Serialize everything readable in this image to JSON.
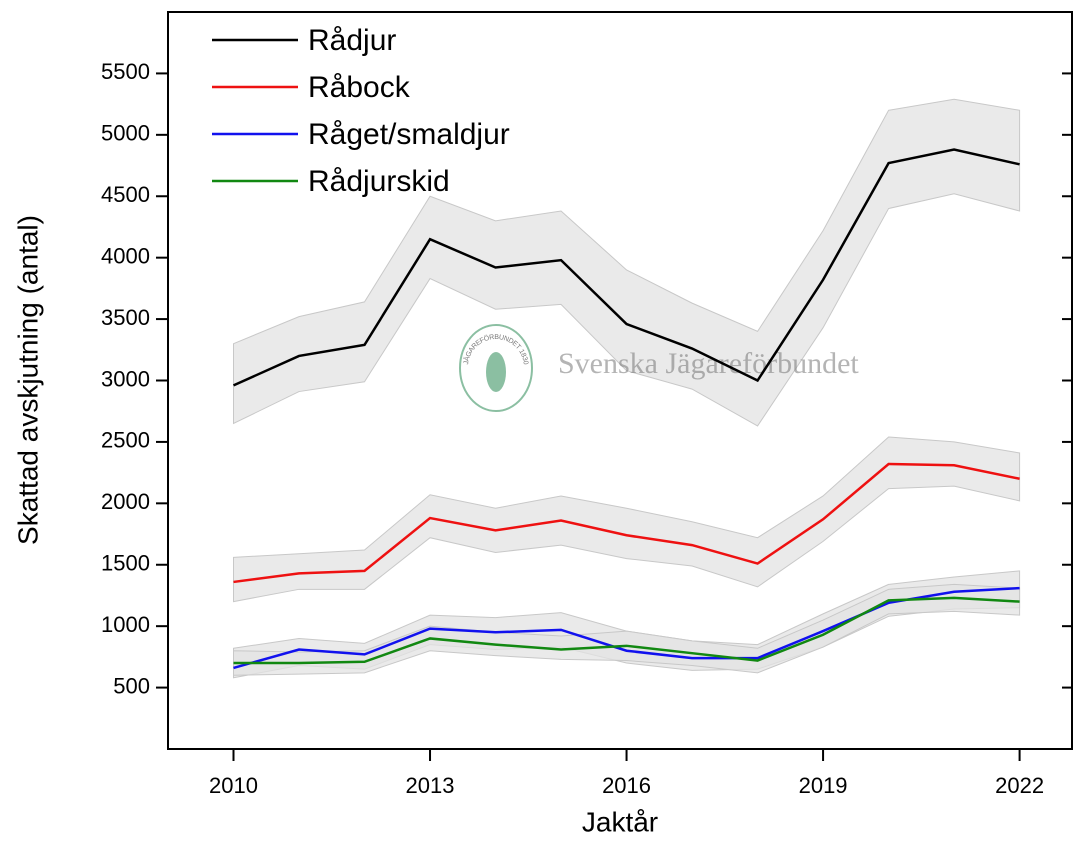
{
  "chart_data": {
    "type": "line",
    "x_label": "Jaktår",
    "y_label": "Skattad avskjutning (antal)",
    "watermark": "Svenska Jägareförbundet",
    "logo_text": "JÄGAREFÖRBUNDET 1830",
    "x": [
      2010,
      2011,
      2012,
      2013,
      2014,
      2015,
      2016,
      2017,
      2018,
      2019,
      2020,
      2021,
      2022
    ],
    "xlim": [
      2009,
      2022.8
    ],
    "xticks": [
      2010,
      2013,
      2016,
      2019,
      2022
    ],
    "ylim": [
      0,
      6000
    ],
    "yticks": [
      500,
      1000,
      1500,
      2000,
      2500,
      3000,
      3500,
      4000,
      4500,
      5000,
      5500
    ],
    "band_color": "#e3e3e3",
    "legend": "upper left",
    "series": [
      {
        "name": "Rådjur",
        "color": "#000000",
        "values": [
          2960,
          3200,
          3290,
          4150,
          3920,
          3980,
          3460,
          3260,
          3000,
          3820,
          4770,
          4880,
          4760
        ],
        "lower": [
          2650,
          2910,
          2990,
          3830,
          3580,
          3620,
          3080,
          2930,
          2630,
          3430,
          4400,
          4520,
          4380
        ],
        "upper": [
          3300,
          3520,
          3640,
          4500,
          4300,
          4380,
          3900,
          3630,
          3400,
          4220,
          5200,
          5290,
          5200
        ]
      },
      {
        "name": "Råbock",
        "color": "#ee1111",
        "values": [
          1360,
          1430,
          1450,
          1880,
          1780,
          1860,
          1740,
          1660,
          1510,
          1870,
          2320,
          2310,
          2200
        ],
        "lower": [
          1200,
          1300,
          1300,
          1720,
          1600,
          1660,
          1550,
          1490,
          1320,
          1690,
          2120,
          2140,
          2020
        ],
        "upper": [
          1560,
          1590,
          1620,
          2070,
          1960,
          2060,
          1960,
          1850,
          1720,
          2060,
          2540,
          2500,
          2410
        ]
      },
      {
        "name": "Råget/smaldjur",
        "color": "#1111ee",
        "values": [
          660,
          810,
          770,
          980,
          950,
          970,
          800,
          740,
          740,
          960,
          1190,
          1280,
          1310
        ],
        "lower": [
          580,
          680,
          650,
          850,
          810,
          830,
          700,
          640,
          650,
          830,
          1080,
          1140,
          1150
        ],
        "upper": [
          820,
          900,
          860,
          1090,
          1070,
          1110,
          960,
          880,
          850,
          1100,
          1340,
          1400,
          1450
        ]
      },
      {
        "name": "Rådjurskid",
        "color": "#118811",
        "values": [
          700,
          700,
          710,
          900,
          850,
          810,
          840,
          780,
          720,
          930,
          1210,
          1230,
          1200
        ],
        "lower": [
          600,
          610,
          620,
          800,
          760,
          730,
          720,
          680,
          620,
          830,
          1100,
          1120,
          1090
        ],
        "upper": [
          800,
          790,
          800,
          1000,
          950,
          920,
          960,
          880,
          820,
          1050,
          1300,
          1340,
          1310
        ]
      }
    ]
  }
}
